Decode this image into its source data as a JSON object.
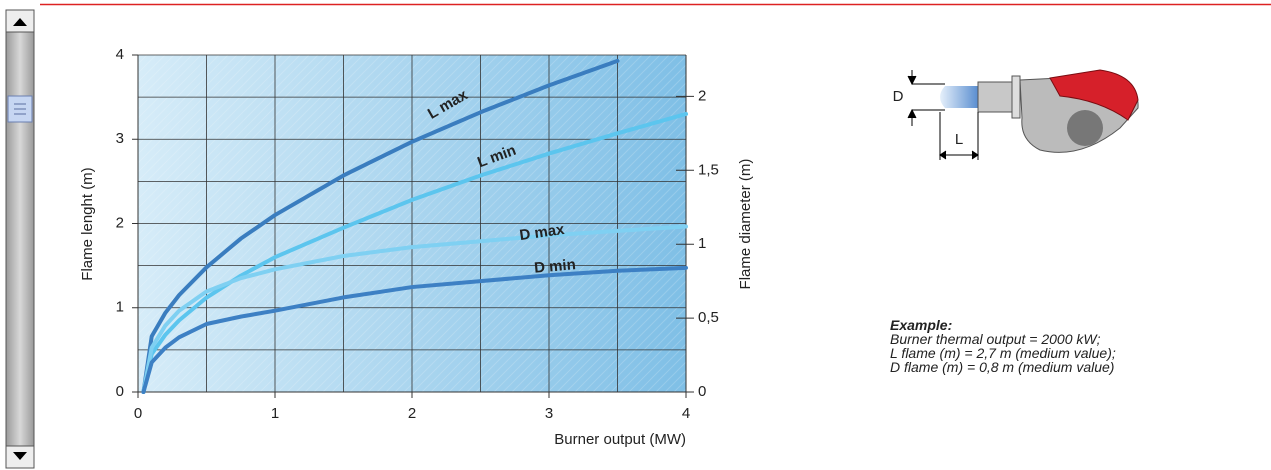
{
  "chart_data": {
    "type": "line",
    "xlabel": "Burner output (MW)",
    "ylabel": "Flame lenght (m)",
    "y2label": "Flame diameter (m)",
    "x": [
      0.04,
      0.1,
      0.2,
      0.3,
      0.5,
      0.75,
      1,
      1.5,
      2,
      2.5,
      3,
      3.5,
      4
    ],
    "series": [
      {
        "name": "L max",
        "color": "#3a7dbf",
        "values": [
          0,
          0.66,
          0.94,
          1.15,
          1.48,
          1.82,
          2.1,
          2.57,
          2.97,
          3.32,
          3.64,
          3.93,
          null
        ]
      },
      {
        "name": "L min",
        "color": "#5cc5ee",
        "values": [
          0,
          0.45,
          0.68,
          0.85,
          1.12,
          1.38,
          1.6,
          1.95,
          2.28,
          2.57,
          2.83,
          3.07,
          3.3
        ]
      },
      {
        "name": "D max",
        "color": "#7fd0f2",
        "axis": "y2",
        "values": [
          0,
          0.3,
          0.45,
          0.55,
          0.68,
          0.77,
          0.83,
          0.92,
          0.98,
          1.02,
          1.06,
          1.09,
          1.12
        ]
      },
      {
        "name": "D min",
        "color": "#3d80c4",
        "axis": "y2",
        "values": [
          0,
          0.2,
          0.3,
          0.37,
          0.46,
          0.51,
          0.55,
          0.64,
          0.71,
          0.75,
          0.79,
          0.82,
          0.84
        ]
      }
    ],
    "xlim": [
      0,
      4
    ],
    "xticks": [
      0,
      1,
      2,
      3,
      4
    ],
    "ylim": [
      0,
      4
    ],
    "yticks": [
      0,
      1,
      2,
      3,
      4
    ],
    "y2lim": [
      0,
      2.28
    ],
    "y2ticks": [
      0,
      {
        "value": 0.5,
        "label": "0,5"
      },
      1,
      {
        "value": 1.5,
        "label": "1,5"
      },
      2
    ],
    "xgrid": [
      0.5,
      1,
      1.5,
      2,
      2.5,
      3,
      3.5
    ],
    "ygrid": [
      0.5,
      1,
      1.5,
      2,
      2.5,
      3,
      3.5,
      4
    ],
    "grid": true
  },
  "diagram": {
    "d_label": "D",
    "l_label": "L"
  },
  "example": {
    "title": "Example:",
    "lines": [
      "Burner thermal output = 2000 kW;",
      "L flame (m) = 2,7 m (medium value);",
      "D flame (m) = 0,8 m (medium value)"
    ]
  }
}
